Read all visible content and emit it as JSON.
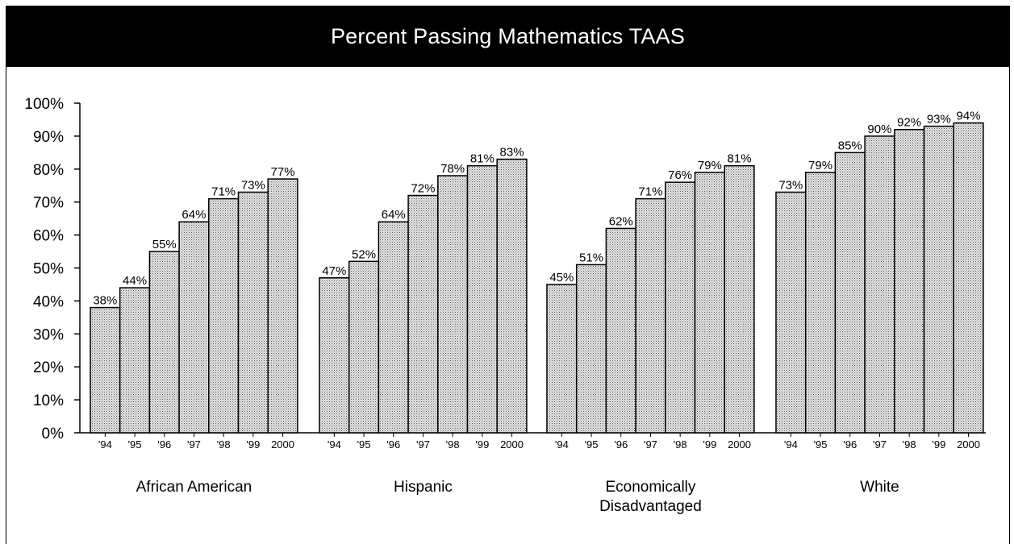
{
  "chart_data": {
    "type": "bar",
    "title": "Percent Passing Mathematics TAAS",
    "ylim": [
      0,
      100
    ],
    "y_ticks": [
      "0%",
      "10%",
      "20%",
      "30%",
      "40%",
      "50%",
      "60%",
      "70%",
      "80%",
      "90%",
      "100%"
    ],
    "categories": [
      "'94",
      "'95",
      "'96",
      "'97",
      "'98",
      "'99",
      "2000"
    ],
    "series": [
      {
        "name": "African American",
        "label_lines": [
          "African American"
        ],
        "values": [
          38,
          44,
          55,
          64,
          71,
          73,
          77
        ],
        "data_labels": [
          "38%",
          "44%",
          "55%",
          "64%",
          "71%",
          "73%",
          "77%"
        ]
      },
      {
        "name": "Hispanic",
        "label_lines": [
          "Hispanic"
        ],
        "values": [
          47,
          52,
          64,
          72,
          78,
          81,
          83
        ],
        "data_labels": [
          "47%",
          "52%",
          "64%",
          "72%",
          "78%",
          "81%",
          "83%"
        ]
      },
      {
        "name": "Economically Disadvantaged",
        "label_lines": [
          "Economically",
          "Disadvantaged"
        ],
        "values": [
          45,
          51,
          62,
          71,
          76,
          79,
          81
        ],
        "data_labels": [
          "45%",
          "51%",
          "62%",
          "71%",
          "76%",
          "79%",
          "81%"
        ]
      },
      {
        "name": "White",
        "label_lines": [
          "White"
        ],
        "values": [
          73,
          79,
          85,
          90,
          92,
          93,
          94
        ],
        "data_labels": [
          "73%",
          "79%",
          "85%",
          "90%",
          "92%",
          "93%",
          "94%"
        ]
      }
    ],
    "grid": false,
    "legend": "none",
    "bar_fill": "#c8c8c8",
    "bar_stroke": "#000000"
  }
}
